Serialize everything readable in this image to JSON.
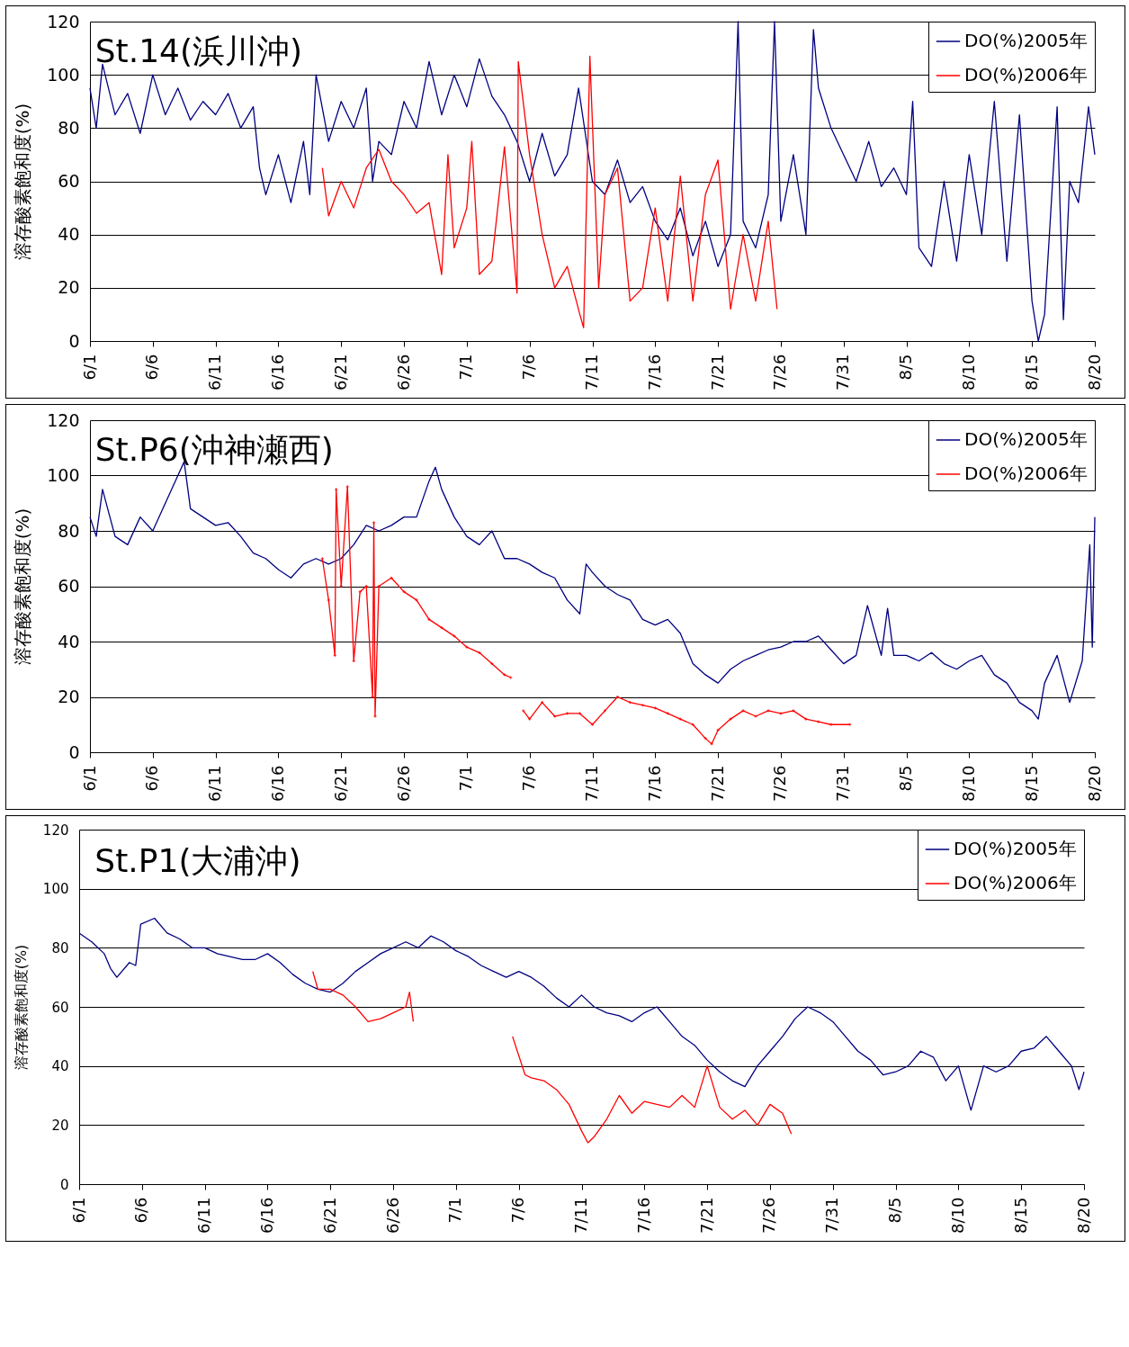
{
  "chart_data": [
    {
      "type": "line",
      "title": "St.14(浜川沖)",
      "ylabel": "溶存酸素飽和度(%)",
      "xlim": [
        "--06-01",
        "--08-20"
      ],
      "ylim": [
        0,
        120
      ],
      "yticks": [
        0,
        20,
        40,
        60,
        80,
        100,
        120
      ],
      "xticks": [
        {
          "value": "--06-01",
          "label": "6/1"
        },
        {
          "value": "--06-06",
          "label": "6/6"
        },
        {
          "value": "--06-11",
          "label": "6/11"
        },
        {
          "value": "--06-16",
          "label": "6/16"
        },
        {
          "value": "--06-21",
          "label": "6/21"
        },
        {
          "value": "--06-26",
          "label": "6/26"
        },
        {
          "value": "--07-01",
          "label": "7/1"
        },
        {
          "value": "--07-06",
          "label": "7/6"
        },
        {
          "value": "--07-11",
          "label": "7/11"
        },
        {
          "value": "--07-16",
          "label": "7/16"
        },
        {
          "value": "--07-21",
          "label": "7/21"
        },
        {
          "value": "--07-26",
          "label": "7/26"
        },
        {
          "value": "--07-31",
          "label": "7/31"
        },
        {
          "value": "--08-05",
          "label": "8/5"
        },
        {
          "value": "--08-10",
          "label": "8/10"
        },
        {
          "value": "--08-15",
          "label": "8/15"
        },
        {
          "value": "--08-20",
          "label": "8/20"
        }
      ],
      "grid": "y",
      "legend": "top right",
      "series": [
        {
          "name": "DO(%)2005年",
          "color": "#000080",
          "x": [
            "--06-01",
            "--06-01T12:00",
            "--06-02",
            "--06-03",
            "--06-04",
            "--06-05",
            "--06-06",
            "--06-07",
            "--06-08",
            "--06-09",
            "--06-10",
            "--06-11",
            "--06-12",
            "--06-13",
            "--06-14",
            "--06-14T12:00",
            "--06-15",
            "--06-16",
            "--06-17",
            "--06-18",
            "--06-18T12:00",
            "--06-19",
            "--06-20",
            "--06-21",
            "--06-22",
            "--06-23",
            "--06-23T12:00",
            "--06-24",
            "--06-25",
            "--06-26",
            "--06-27",
            "--06-28",
            "--06-29",
            "--06-30",
            "--07-01",
            "--07-02",
            "--07-03",
            "--07-04",
            "--07-05",
            "--07-06",
            "--07-07",
            "--07-08",
            "--07-09",
            "--07-09T21:36",
            "--07-11",
            "--07-12",
            "--07-13",
            "--07-14",
            "--07-15",
            "--07-16",
            "--07-17",
            "--07-18",
            "--07-19",
            "--07-20",
            "--07-21",
            "--07-22",
            "--07-22T14:24",
            "--07-23",
            "--07-24",
            "--07-25",
            "--07-25T12:00",
            "--07-26",
            "--07-27",
            "--07-28",
            "--07-28T14:24",
            "--07-29",
            "--07-30",
            "--07-31",
            "--08-01",
            "--08-02",
            "--08-03",
            "--08-04",
            "--08-05",
            "--08-05T12:00",
            "--08-06",
            "--08-07",
            "--08-08",
            "--08-09",
            "--08-10",
            "--08-11",
            "--08-12",
            "--08-13",
            "--08-14",
            "--08-15",
            "--08-15T12:00",
            "--08-16",
            "--08-17",
            "--08-17T12:00",
            "--08-18",
            "--08-18T16:48",
            "--08-19T12:00",
            "--08-20"
          ],
          "values": [
            95,
            80,
            104,
            85,
            93,
            78,
            100,
            85,
            95,
            83,
            90,
            85,
            93,
            80,
            88,
            65,
            55,
            70,
            52,
            75,
            55,
            100,
            75,
            90,
            80,
            95,
            60,
            75,
            70,
            90,
            80,
            105,
            85,
            100,
            88,
            106,
            92,
            85,
            75,
            60,
            78,
            62,
            70,
            95,
            60,
            55,
            68,
            52,
            58,
            45,
            38,
            50,
            32,
            45,
            28,
            40,
            120,
            45,
            35,
            55,
            120,
            45,
            70,
            40,
            117,
            95,
            80,
            70,
            60,
            75,
            58,
            65,
            55,
            90,
            35,
            28,
            60,
            30,
            70,
            40,
            90,
            30,
            85,
            15,
            0,
            10,
            88,
            8,
            60,
            52,
            88,
            70
          ]
        },
        {
          "name": "DO(%)2006年",
          "color": "#ff0000",
          "x": [
            "--06-19T12:00",
            "--06-20",
            "--06-21",
            "--06-22",
            "--06-23",
            "--06-24",
            "--06-25",
            "--06-26",
            "--06-27",
            "--06-28",
            "--06-29",
            "--06-29T12:00",
            "--06-30",
            "--07-01",
            "--07-01T09:36",
            "--07-02",
            "--07-03",
            "--07-04",
            "--07-05",
            "--07-05T02:24",
            "--07-06",
            "--07-07",
            "--07-08",
            "--07-09",
            "--07-10",
            "--07-10T07:12",
            "--07-10T19:12",
            "--07-11T12:00",
            "--07-12",
            "--07-13",
            "--07-14",
            "--07-15",
            "--07-16",
            "--07-17",
            "--07-18",
            "--07-19",
            "--07-20",
            "--07-21",
            "--07-22",
            "--07-23",
            "--07-24",
            "--07-25",
            "--07-25T16:48"
          ],
          "values": [
            65,
            47,
            60,
            50,
            65,
            72,
            60,
            55,
            48,
            52,
            25,
            70,
            35,
            50,
            75,
            25,
            30,
            73,
            18,
            105,
            70,
            40,
            20,
            28,
            10,
            5,
            107,
            20,
            55,
            65,
            15,
            20,
            50,
            15,
            62,
            15,
            55,
            68,
            12,
            40,
            15,
            45,
            12
          ]
        }
      ]
    },
    {
      "type": "line",
      "title": "St.P6(沖神瀬西)",
      "ylabel": "溶存酸素飽和度(%)",
      "xlim": [
        "--06-01",
        "--08-20"
      ],
      "ylim": [
        0,
        120
      ],
      "yticks": [
        0,
        20,
        40,
        60,
        80,
        100,
        120
      ],
      "xticks": [
        {
          "value": "--06-01",
          "label": "6/1"
        },
        {
          "value": "--06-06",
          "label": "6/6"
        },
        {
          "value": "--06-11",
          "label": "6/11"
        },
        {
          "value": "--06-16",
          "label": "6/16"
        },
        {
          "value": "--06-21",
          "label": "6/21"
        },
        {
          "value": "--06-26",
          "label": "6/26"
        },
        {
          "value": "--07-01",
          "label": "7/1"
        },
        {
          "value": "--07-06",
          "label": "7/6"
        },
        {
          "value": "--07-11",
          "label": "7/11"
        },
        {
          "value": "--07-16",
          "label": "7/16"
        },
        {
          "value": "--07-21",
          "label": "7/21"
        },
        {
          "value": "--07-26",
          "label": "7/26"
        },
        {
          "value": "--07-31",
          "label": "7/31"
        },
        {
          "value": "--08-05",
          "label": "8/5"
        },
        {
          "value": "--08-10",
          "label": "8/10"
        },
        {
          "value": "--08-15",
          "label": "8/15"
        },
        {
          "value": "--08-20",
          "label": "8/20"
        }
      ],
      "grid": "y",
      "legend": "top right",
      "series": [
        {
          "name": "DO(%)2005年",
          "color": "#000080",
          "x": [
            "--06-01",
            "--06-01T12:00",
            "--06-02",
            "--06-03",
            "--06-04",
            "--06-05",
            "--06-06",
            "--06-07",
            "--06-08",
            "--06-08T12:00",
            "--06-09",
            "--06-10",
            "--06-11",
            "--06-12",
            "--06-13",
            "--06-14",
            "--06-15",
            "--06-16",
            "--06-17",
            "--06-18",
            "--06-19",
            "--06-20",
            "--06-21",
            "--06-22",
            "--06-23",
            "--06-24",
            "--06-25",
            "--06-26",
            "--06-27",
            "--06-28",
            "--06-28T12:00",
            "--06-29",
            "--06-30",
            "--07-01",
            "--07-02",
            "--07-03",
            "--07-04",
            "--07-05",
            "--07-06",
            "--07-07",
            "--07-08",
            "--07-09",
            "--07-10",
            "--07-10T12:00",
            "--07-11",
            "--07-12",
            "--07-13",
            "--07-14",
            "--07-15",
            "--07-16",
            "--07-17",
            "--07-18",
            "--07-19",
            "--07-20",
            "--07-21",
            "--07-22",
            "--07-23",
            "--07-24",
            "--07-25",
            "--07-26",
            "--07-27",
            "--07-28",
            "--07-29",
            "--07-30",
            "--07-31",
            "--08-01",
            "--08-01T21:36",
            "--08-03",
            "--08-03T12:00",
            "--08-04",
            "--08-05",
            "--08-06",
            "--08-07",
            "--08-08",
            "--08-09",
            "--08-10",
            "--08-11",
            "--08-12",
            "--08-13",
            "--08-14",
            "--08-15",
            "--08-15T12:00",
            "--08-16",
            "--08-17",
            "--08-18",
            "--08-19",
            "--08-19T14:24",
            "--08-19T19:12",
            "--08-20"
          ],
          "values": [
            85,
            78,
            95,
            78,
            75,
            85,
            80,
            90,
            100,
            105,
            88,
            85,
            82,
            83,
            78,
            72,
            70,
            66,
            63,
            68,
            70,
            68,
            70,
            75,
            82,
            80,
            82,
            85,
            85,
            98,
            103,
            95,
            85,
            78,
            75,
            80,
            70,
            70,
            68,
            65,
            63,
            55,
            50,
            68,
            65,
            60,
            57,
            55,
            48,
            46,
            48,
            43,
            32,
            28,
            25,
            30,
            33,
            35,
            37,
            38,
            40,
            40,
            42,
            37,
            32,
            35,
            53,
            35,
            52,
            35,
            35,
            33,
            36,
            32,
            30,
            33,
            35,
            28,
            25,
            18,
            15,
            12,
            25,
            35,
            18,
            33,
            75,
            38,
            85
          ]
        },
        {
          "name": "DO(%)2006年",
          "color": "#ff0000",
          "marker": "cross",
          "x": [
            "--06-19T12:00",
            "--06-20",
            "--06-20T12:00",
            "--06-20T14:24",
            "--06-21",
            "--06-21T12:00",
            "--06-22",
            "--06-22T12:00",
            "--06-23",
            "--06-23T12:00",
            "--06-23T14:24",
            "--06-23T16:48",
            "--06-24",
            "--06-25",
            "--06-26",
            "--06-27",
            "--06-28",
            "--06-29",
            "--06-30",
            "--07-01",
            "--07-02",
            "--07-03",
            "--07-04",
            "--07-04T12:00",
            "--07-05",
            "--07-05T12:00",
            "--07-06",
            "--07-07",
            "--07-08",
            "--07-09",
            "--07-10",
            "--07-11",
            "--07-12",
            "--07-13",
            "--07-14",
            "--07-15",
            "--07-16",
            "--07-17",
            "--07-18",
            "--07-19",
            "--07-20",
            "--07-20T12:00",
            "--07-21",
            "--07-22",
            "--07-23",
            "--07-24",
            "--07-25",
            "--07-26",
            "--07-27",
            "--07-28",
            "--07-29",
            "--07-30",
            "--07-31T12:00"
          ],
          "values": [
            70,
            55,
            35,
            95,
            60,
            96,
            33,
            58,
            60,
            20,
            83,
            13,
            60,
            63,
            58,
            55,
            48,
            45,
            42,
            38,
            36,
            32,
            28,
            27,
            null,
            15,
            12,
            18,
            13,
            14,
            14,
            10,
            15,
            20,
            18,
            17,
            16,
            14,
            12,
            10,
            5,
            3,
            8,
            12,
            15,
            13,
            15,
            14,
            15,
            12,
            11,
            10,
            10
          ]
        }
      ]
    },
    {
      "type": "line",
      "title": "St.P1(大浦沖)",
      "ylabel": "溶存酸素飽和度(%)",
      "xlim": [
        "--06-01",
        "--08-20"
      ],
      "ylim": [
        0,
        120
      ],
      "yticks": [
        0,
        20,
        40,
        60,
        80,
        100,
        120
      ],
      "xticks": [
        {
          "value": "--06-01",
          "label": "6/1"
        },
        {
          "value": "--06-06",
          "label": "6/6"
        },
        {
          "value": "--06-11",
          "label": "6/11"
        },
        {
          "value": "--06-16",
          "label": "6/16"
        },
        {
          "value": "--06-21",
          "label": "6/21"
        },
        {
          "value": "--06-26",
          "label": "6/26"
        },
        {
          "value": "--07-01",
          "label": "7/1"
        },
        {
          "value": "--07-06",
          "label": "7/6"
        },
        {
          "value": "--07-11",
          "label": "7/11"
        },
        {
          "value": "--07-16",
          "label": "7/16"
        },
        {
          "value": "--07-21",
          "label": "7/21"
        },
        {
          "value": "--07-26",
          "label": "7/26"
        },
        {
          "value": "--07-31",
          "label": "7/31"
        },
        {
          "value": "--08-05",
          "label": "8/5"
        },
        {
          "value": "--08-10",
          "label": "8/10"
        },
        {
          "value": "--08-15",
          "label": "8/15"
        },
        {
          "value": "--08-20",
          "label": "8/20"
        }
      ],
      "grid": "y",
      "legend": "top right",
      "series": [
        {
          "name": "DO(%)2005年",
          "color": "#000080",
          "x": [
            "--06-01",
            "--06-02",
            "--06-03",
            "--06-03T12:00",
            "--06-04",
            "--06-05",
            "--06-05T12:00",
            "--06-05T21:36",
            "--06-07",
            "--06-08",
            "--06-09",
            "--06-10",
            "--06-11",
            "--06-12",
            "--06-13",
            "--06-14",
            "--06-15",
            "--06-16",
            "--06-17",
            "--06-18",
            "--06-19",
            "--06-20",
            "--06-21",
            "--06-22",
            "--06-23",
            "--06-24",
            "--06-25",
            "--06-26",
            "--06-27",
            "--06-28",
            "--06-29",
            "--06-30",
            "--07-01",
            "--07-02",
            "--07-03",
            "--07-04",
            "--07-05",
            "--07-06",
            "--07-07",
            "--07-08",
            "--07-09",
            "--07-10",
            "--07-11",
            "--07-12",
            "--07-13",
            "--07-14",
            "--07-15",
            "--07-16",
            "--07-17",
            "--07-18",
            "--07-19",
            "--07-20",
            "--07-21",
            "--07-22",
            "--07-23",
            "--07-24",
            "--07-25",
            "--07-26",
            "--07-27",
            "--07-28",
            "--07-29",
            "--07-30",
            "--07-31",
            "--08-01",
            "--08-02",
            "--08-03",
            "--08-04",
            "--08-05",
            "--08-06",
            "--08-07",
            "--08-08",
            "--08-09",
            "--08-10",
            "--08-11",
            "--08-12",
            "--08-13",
            "--08-14",
            "--08-15",
            "--08-16",
            "--08-17",
            "--08-18",
            "--08-19",
            "--08-19T14:24",
            "--08-20"
          ],
          "values": [
            85,
            82,
            78,
            73,
            70,
            75,
            74,
            88,
            90,
            85,
            83,
            80,
            80,
            78,
            77,
            76,
            76,
            78,
            75,
            71,
            68,
            66,
            65,
            68,
            72,
            75,
            78,
            80,
            82,
            80,
            84,
            82,
            79,
            77,
            74,
            72,
            70,
            72,
            70,
            67,
            63,
            60,
            64,
            60,
            58,
            57,
            55,
            58,
            60,
            55,
            50,
            47,
            42,
            38,
            35,
            33,
            40,
            45,
            50,
            56,
            60,
            58,
            55,
            50,
            45,
            42,
            37,
            38,
            40,
            45,
            43,
            35,
            40,
            25,
            40,
            38,
            40,
            45,
            46,
            50,
            45,
            40,
            32,
            38
          ]
        },
        {
          "name": "DO(%)2006年",
          "color": "#ff0000",
          "x": [
            "--06-19T14:24",
            "--06-20",
            "--06-21",
            "--06-22",
            "--06-23",
            "--06-24",
            "--06-25",
            "--06-26",
            "--06-27",
            "--06-27T07:12",
            "--06-27T14:24",
            "--07-01",
            "--07-05T12:00",
            "--07-06T12:00",
            "--07-07",
            "--07-08",
            "--07-09",
            "--07-10",
            "--07-11",
            "--07-11T12:00",
            "--07-12",
            "--07-13",
            "--07-14",
            "--07-15",
            "--07-16",
            "--07-17",
            "--07-18",
            "--07-19",
            "--07-20",
            "--07-21",
            "--07-22",
            "--07-23",
            "--07-24",
            "--07-25",
            "--07-26",
            "--07-27",
            "--07-27T16:48"
          ],
          "values": [
            72,
            66,
            66,
            64,
            60,
            55,
            56,
            58,
            60,
            65,
            55,
            null,
            50,
            37,
            36,
            35,
            32,
            27,
            18,
            14,
            16,
            22,
            30,
            24,
            28,
            27,
            26,
            30,
            26,
            40,
            26,
            22,
            25,
            20,
            27,
            24,
            17
          ]
        }
      ]
    }
  ]
}
